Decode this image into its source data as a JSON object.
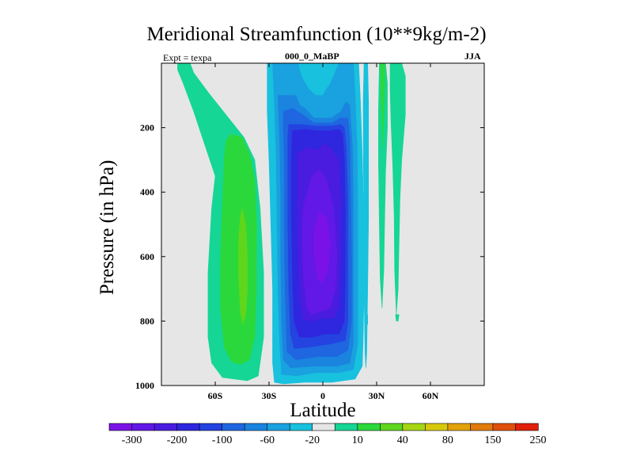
{
  "chart_data": {
    "type": "contour",
    "title": "Meridional Streamfunction (10**9kg/m-2)",
    "left_subtitle": "Expt = texpa",
    "center_subtitle": "000_0_MaBP",
    "right_subtitle": "JJA",
    "xlabel": "Latitude",
    "ylabel": "Pressure (in hPa)",
    "xlim": [
      -90,
      90
    ],
    "ylim": [
      1000,
      0
    ],
    "x_ticks": [
      {
        "value": -60,
        "label": "60S"
      },
      {
        "value": -30,
        "label": "30S"
      },
      {
        "value": 0,
        "label": "0"
      },
      {
        "value": 30,
        "label": "30N"
      },
      {
        "value": 60,
        "label": "60N"
      }
    ],
    "y_ticks": [
      {
        "value": 200,
        "label": "200"
      },
      {
        "value": 400,
        "label": "400"
      },
      {
        "value": 600,
        "label": "600"
      },
      {
        "value": 800,
        "label": "800"
      },
      {
        "value": 1000,
        "label": "1000"
      }
    ],
    "background_color": "#e6e6e6",
    "colorbar": {
      "colors": [
        "#7a12e8",
        "#6218e6",
        "#4a1ce0",
        "#2f26df",
        "#2443e0",
        "#1f66e0",
        "#1a84df",
        "#1aa1df",
        "#18c1de",
        "#e6e6e6",
        "#15d695",
        "#2ad83b",
        "#5fd61c",
        "#a6d612",
        "#d8c80c",
        "#e2a20a",
        "#e07a0a",
        "#e0500a",
        "#e0200a"
      ],
      "labels": [
        {
          "text": "-300",
          "boundary": 1
        },
        {
          "text": "-200",
          "boundary": 3
        },
        {
          "text": "-100",
          "boundary": 5
        },
        {
          "text": "-60",
          "boundary": 7
        },
        {
          "text": "-20",
          "boundary": 9
        },
        {
          "text": "10",
          "boundary": 11
        },
        {
          "text": "40",
          "boundary": 13
        },
        {
          "text": "80",
          "boundary": 15
        },
        {
          "text": "150",
          "boundary": 17
        },
        {
          "text": "250",
          "boundary": 19
        }
      ]
    },
    "regions": [
      {
        "name": "sh-positive-outer",
        "fill": "#15d695",
        "pts": [
          [
            -81,
            0
          ],
          [
            -74,
            0
          ],
          [
            -72,
            30
          ],
          [
            -64,
            90
          ],
          [
            -54,
            160
          ],
          [
            -44,
            230
          ],
          [
            -38,
            300
          ],
          [
            -35,
            450
          ],
          [
            -33,
            650
          ],
          [
            -33,
            850
          ],
          [
            -36,
            970
          ],
          [
            -42,
            985
          ],
          [
            -56,
            975
          ],
          [
            -62,
            930
          ],
          [
            -64,
            850
          ],
          [
            -64,
            650
          ],
          [
            -62,
            450
          ],
          [
            -60,
            350
          ],
          [
            -66,
            250
          ],
          [
            -72,
            150
          ],
          [
            -78,
            60
          ],
          [
            -81,
            20
          ]
        ]
      },
      {
        "name": "sh-positive-sliver",
        "fill": "#15d695",
        "pts": [
          [
            -78,
            0
          ],
          [
            -76.5,
            0
          ],
          [
            -76.5,
            25
          ],
          [
            -78,
            25
          ]
        ]
      },
      {
        "name": "sh-positive-mid",
        "fill": "#2ad83b",
        "pts": [
          [
            -51,
            220
          ],
          [
            -45,
            230
          ],
          [
            -41,
            280
          ],
          [
            -38,
            360
          ],
          [
            -37,
            500
          ],
          [
            -37,
            700
          ],
          [
            -38,
            850
          ],
          [
            -41,
            920
          ],
          [
            -46,
            935
          ],
          [
            -51,
            925
          ],
          [
            -55,
            880
          ],
          [
            -57,
            760
          ],
          [
            -57,
            600
          ],
          [
            -56,
            440
          ],
          [
            -55,
            300
          ],
          [
            -54,
            240
          ]
        ]
      },
      {
        "name": "sh-positive-core",
        "fill": "#5fd61c",
        "pts": [
          [
            -45,
            450
          ],
          [
            -43,
            500
          ],
          [
            -42,
            600
          ],
          [
            -42,
            700
          ],
          [
            -43,
            780
          ],
          [
            -44.5,
            810
          ],
          [
            -46,
            770
          ],
          [
            -47,
            660
          ],
          [
            -47,
            540
          ],
          [
            -46,
            480
          ]
        ]
      },
      {
        "name": "nh-positive-strip",
        "fill": "#15d695",
        "pts": [
          [
            31.5,
            0
          ],
          [
            35,
            0
          ],
          [
            36,
            60
          ],
          [
            36,
            200
          ],
          [
            35,
            340
          ],
          [
            34.5,
            480
          ],
          [
            34,
            640
          ],
          [
            33,
            760
          ],
          [
            32,
            670
          ],
          [
            31.5,
            500
          ],
          [
            31,
            300
          ],
          [
            31,
            150
          ]
        ]
      },
      {
        "name": "nh-positive-strip-core",
        "fill": "#2ad83b",
        "pts": [
          [
            32.3,
            0
          ],
          [
            34.5,
            0
          ],
          [
            34.5,
            70
          ],
          [
            34,
            160
          ],
          [
            33.2,
            260
          ],
          [
            32.8,
            160
          ],
          [
            32.4,
            80
          ]
        ]
      },
      {
        "name": "nh-positive-right",
        "fill": "#15d695",
        "pts": [
          [
            37.5,
            0
          ],
          [
            44,
            0
          ],
          [
            46,
            40
          ],
          [
            46,
            160
          ],
          [
            44,
            300
          ],
          [
            43,
            420
          ],
          [
            42.5,
            560
          ],
          [
            42,
            700
          ],
          [
            41,
            780
          ],
          [
            40,
            640
          ],
          [
            39.8,
            480
          ],
          [
            39,
            320
          ],
          [
            38,
            180
          ],
          [
            37.5,
            80
          ]
        ]
      },
      {
        "name": "nh-positive-right-b",
        "fill": "#15d695",
        "pts": [
          [
            40.5,
            780
          ],
          [
            42.5,
            780
          ],
          [
            42,
            800
          ],
          [
            41,
            800
          ]
        ]
      },
      {
        "name": "hadley-l1",
        "fill": "#18c1de",
        "pts": [
          [
            -31,
            0
          ],
          [
            20,
            0
          ],
          [
            21,
            120
          ],
          [
            22,
            290
          ],
          [
            23,
            500
          ],
          [
            23,
            700
          ],
          [
            22.5,
            850
          ],
          [
            22,
            940
          ],
          [
            18,
            980
          ],
          [
            5,
            990
          ],
          [
            -10,
            990
          ],
          [
            -22,
            995
          ],
          [
            -27,
            990
          ],
          [
            -28,
            930
          ],
          [
            -28,
            700
          ],
          [
            -29,
            500
          ],
          [
            -30,
            300
          ],
          [
            -31,
            150
          ]
        ]
      },
      {
        "name": "hadley-l1-tail",
        "fill": "#18c1de",
        "pts": [
          [
            23,
            0
          ],
          [
            25,
            0
          ],
          [
            25.5,
            120
          ],
          [
            25.5,
            280
          ],
          [
            25.5,
            480
          ],
          [
            25,
            700
          ],
          [
            24.5,
            900
          ],
          [
            24,
            945
          ],
          [
            23.5,
            900
          ],
          [
            23,
            700
          ],
          [
            23,
            500
          ],
          [
            22.6,
            290
          ],
          [
            22.5,
            120
          ]
        ]
      },
      {
        "name": "hadley-l1-tick",
        "fill": "#18c1de",
        "pts": [
          [
            24.1,
            780
          ],
          [
            25,
            780
          ],
          [
            25,
            810
          ],
          [
            24.2,
            810
          ]
        ]
      },
      {
        "name": "hadley-l2",
        "fill": "#1aa1df",
        "pts": [
          [
            -28,
            0
          ],
          [
            -14,
            0
          ],
          [
            -12,
            40
          ],
          [
            -8,
            80
          ],
          [
            -4,
            100
          ],
          [
            0,
            100
          ],
          [
            2,
            80
          ],
          [
            4,
            65
          ],
          [
            6,
            40
          ],
          [
            9,
            0
          ],
          [
            17,
            0
          ],
          [
            18,
            100
          ],
          [
            19,
            250
          ],
          [
            19.5,
            450
          ],
          [
            19.5,
            700
          ],
          [
            19.5,
            870
          ],
          [
            17,
            950
          ],
          [
            9,
            960
          ],
          [
            -4,
            960
          ],
          [
            -15,
            970
          ],
          [
            -23,
            965
          ],
          [
            -24,
            880
          ],
          [
            -25,
            700
          ],
          [
            -25.5,
            500
          ],
          [
            -26,
            300
          ],
          [
            -27,
            120
          ]
        ]
      },
      {
        "name": "hadley-l3",
        "fill": "#1a84df",
        "pts": [
          [
            -25,
            100
          ],
          [
            -20,
            100
          ],
          [
            -15,
            100
          ],
          [
            -13,
            130
          ],
          [
            -10,
            140
          ],
          [
            -5,
            170
          ],
          [
            5,
            170
          ],
          [
            10,
            150
          ],
          [
            13,
            120
          ],
          [
            15,
            130
          ],
          [
            16.5,
            260
          ],
          [
            17,
            450
          ],
          [
            17,
            700
          ],
          [
            17,
            870
          ],
          [
            15,
            930
          ],
          [
            8,
            940
          ],
          [
            -5,
            940
          ],
          [
            -18,
            945
          ],
          [
            -22,
            920
          ],
          [
            -23,
            800
          ],
          [
            -23.5,
            600
          ],
          [
            -23.5,
            400
          ],
          [
            -24,
            250
          ]
        ]
      },
      {
        "name": "hadley-l4",
        "fill": "#1f66e0",
        "pts": [
          [
            -22,
            150
          ],
          [
            -17,
            140
          ],
          [
            -14,
            150
          ],
          [
            -10,
            165
          ],
          [
            -5,
            185
          ],
          [
            5,
            185
          ],
          [
            10,
            170
          ],
          [
            14,
            170
          ],
          [
            15,
            230
          ],
          [
            15.5,
            400
          ],
          [
            16,
            600
          ],
          [
            16,
            800
          ],
          [
            14,
            890
          ],
          [
            8,
            910
          ],
          [
            -3,
            910
          ],
          [
            -15,
            920
          ],
          [
            -20,
            895
          ],
          [
            -21,
            700
          ],
          [
            -21.5,
            500
          ],
          [
            -21.5,
            300
          ],
          [
            -22,
            200
          ]
        ]
      },
      {
        "name": "hadley-l5",
        "fill": "#2443e0",
        "pts": [
          [
            -19,
            190
          ],
          [
            -12,
            190
          ],
          [
            -5,
            195
          ],
          [
            5,
            195
          ],
          [
            10,
            190
          ],
          [
            12,
            200
          ],
          [
            13,
            260
          ],
          [
            14,
            420
          ],
          [
            14,
            600
          ],
          [
            14,
            800
          ],
          [
            12.5,
            860
          ],
          [
            5,
            870
          ],
          [
            -6,
            880
          ],
          [
            -16,
            885
          ],
          [
            -18,
            840
          ],
          [
            -19,
            700
          ],
          [
            -19.5,
            500
          ],
          [
            -19.5,
            300
          ],
          [
            -19.5,
            230
          ]
        ]
      },
      {
        "name": "hadley-l6",
        "fill": "#2f26df",
        "pts": [
          [
            -17,
            210
          ],
          [
            -10,
            205
          ],
          [
            -4,
            210
          ],
          [
            4,
            210
          ],
          [
            9,
            205
          ],
          [
            11,
            220
          ],
          [
            12,
            300
          ],
          [
            12.5,
            450
          ],
          [
            12.5,
            650
          ],
          [
            12,
            800
          ],
          [
            9,
            840
          ],
          [
            1,
            840
          ],
          [
            -6,
            850
          ],
          [
            -13,
            850
          ],
          [
            -16,
            800
          ],
          [
            -17,
            650
          ],
          [
            -17.5,
            450
          ],
          [
            -17.5,
            300
          ]
        ]
      },
      {
        "name": "hadley-l7",
        "fill": "#4a1ce0",
        "pts": [
          [
            -14,
            280
          ],
          [
            -8,
            260
          ],
          [
            -3,
            270
          ],
          [
            1,
            250
          ],
          [
            5,
            270
          ],
          [
            9,
            300
          ],
          [
            10,
            420
          ],
          [
            10,
            600
          ],
          [
            9,
            760
          ],
          [
            6,
            790
          ],
          [
            0,
            790
          ],
          [
            -6,
            800
          ],
          [
            -11,
            795
          ],
          [
            -13,
            720
          ],
          [
            -14,
            560
          ],
          [
            -14,
            400
          ]
        ]
      },
      {
        "name": "hadley-core",
        "fill": "#6218e6",
        "pts": [
          [
            -11,
            450
          ],
          [
            -6,
            350
          ],
          [
            -2,
            330
          ],
          [
            2,
            360
          ],
          [
            6,
            450
          ],
          [
            8,
            600
          ],
          [
            7,
            700
          ],
          [
            4,
            760
          ],
          [
            -1,
            770
          ],
          [
            -6,
            780
          ],
          [
            -9,
            760
          ],
          [
            -11,
            650
          ],
          [
            -11.5,
            540
          ]
        ]
      },
      {
        "name": "hadley-inner-core",
        "fill": "#7a12e8",
        "pts": [
          [
            -5,
            520
          ],
          [
            -2,
            460
          ],
          [
            2,
            480
          ],
          [
            4,
            560
          ],
          [
            3,
            640
          ],
          [
            0,
            680
          ],
          [
            -3,
            670
          ],
          [
            -5,
            600
          ]
        ]
      }
    ]
  }
}
